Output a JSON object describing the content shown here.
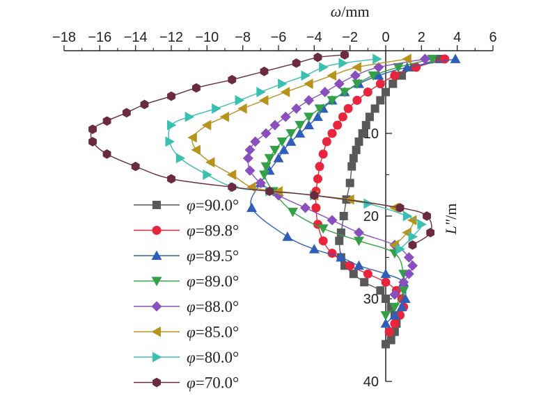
{
  "chart_data": {
    "type": "line",
    "x_axis": {
      "label_symbol": "ω",
      "label_unit": "/mm",
      "range": [
        -18,
        6
      ],
      "ticks": [
        -18,
        -16,
        -14,
        -12,
        -10,
        -8,
        -6,
        -4,
        -2,
        0,
        2,
        4,
        6
      ],
      "tick_labels": [
        "−18",
        "−16",
        "−14",
        "−12",
        "−10",
        "−8",
        "−6",
        "−4",
        "−2",
        "0",
        "2",
        "4",
        "6"
      ],
      "position": "top"
    },
    "y_axis": {
      "label_symbol": "L\"",
      "label_unit": "/m",
      "range": [
        0,
        40
      ],
      "ticks": [
        10,
        20,
        30,
        40
      ],
      "tick_labels": [
        "10",
        "20",
        "30",
        "40"
      ],
      "reversed": true,
      "crosses_at_x": 0
    },
    "grid": false,
    "legend_position": "bottom-left",
    "series": [
      {
        "name": "φ=90.0°",
        "label_value": "=90.0°",
        "color": "#595959",
        "marker": "square",
        "x": [
          3.0,
          1.6,
          0.9,
          0.4,
          0.0,
          -0.3,
          -0.6,
          -0.9,
          -1.1,
          -1.3,
          -1.5,
          -1.65,
          -1.8,
          -1.9,
          -2.0,
          -2.2,
          -2.35,
          -2.5,
          -2.6,
          -2.5,
          -2.3,
          -1.8,
          -1.2,
          -0.3,
          0.0,
          0.3,
          0.5,
          0.6,
          0.5,
          0.3,
          0.0
        ],
        "y": [
          1.0,
          2.0,
          3.0,
          4.0,
          5.0,
          6.0,
          7.0,
          8.0,
          9.0,
          10.0,
          11.0,
          12.0,
          13.0,
          14.0,
          16.0,
          18.0,
          20.0,
          22.0,
          23.0,
          25.0,
          26.0,
          27.0,
          28.0,
          29.0,
          30.0,
          31.0,
          32.0,
          33.0,
          34.0,
          35.0,
          35.5
        ]
      },
      {
        "name": "φ=89.8°",
        "label_value": "=89.8°",
        "color": "#E8253C",
        "marker": "circle",
        "x": [
          3.3,
          1.7,
          0.5,
          -0.3,
          -1.0,
          -1.6,
          -2.1,
          -2.4,
          -2.7,
          -3.0,
          -3.3,
          -3.5,
          -3.7,
          -3.8,
          -3.9,
          -3.9,
          -3.8,
          -3.5,
          -3.0,
          -2.0,
          -1.0,
          0.0,
          0.6,
          0.9,
          1.0,
          0.8,
          0.5,
          0.2
        ],
        "y": [
          1.0,
          2.0,
          3.0,
          4.0,
          5.0,
          6.0,
          7.0,
          8.0,
          9.0,
          10.0,
          11.0,
          12.5,
          14.0,
          15.5,
          17.0,
          19.0,
          21.0,
          23.0,
          24.5,
          26.0,
          27.0,
          28.0,
          29.0,
          30.0,
          31.0,
          32.0,
          33.0,
          34.0
        ]
      },
      {
        "name": "φ=89.5°",
        "label_value": "=89.5°",
        "color": "#2F5EB9",
        "marker": "triangle-up",
        "x": [
          3.9,
          1.2,
          -0.4,
          -1.5,
          -2.3,
          -3.0,
          -3.5,
          -3.8,
          -4.3,
          -4.8,
          -5.3,
          -5.7,
          -6.0,
          -6.5,
          -7.0,
          -7.5,
          -5.5,
          -4.0,
          -2.5,
          -1.5,
          0.0,
          1.0,
          1.1,
          0.9,
          0.5,
          0.0
        ],
        "y": [
          1.0,
          2.0,
          3.0,
          4.0,
          5.0,
          6.0,
          7.0,
          8.0,
          9.0,
          10.0,
          11.0,
          12.0,
          13.0,
          14.5,
          16.0,
          19.0,
          22.5,
          24.0,
          25.0,
          26.0,
          27.0,
          28.0,
          30.0,
          31.0,
          32.0,
          33.0
        ]
      },
      {
        "name": "φ=89.0°",
        "label_value": "=89.0°",
        "color": "#33A048",
        "marker": "triangle-down",
        "x": [
          2.6,
          0.7,
          -0.7,
          -1.6,
          -2.3,
          -3.0,
          -3.7,
          -4.3,
          -4.8,
          -5.3,
          -5.8,
          -6.2,
          -6.5,
          -6.7,
          -6.8,
          -6.3,
          -5.2,
          -3.5,
          -1.5,
          0.5,
          1.0,
          1.0,
          0.5,
          0.0
        ],
        "y": [
          1.0,
          2.0,
          3.0,
          4.0,
          5.0,
          6.0,
          7.0,
          8.0,
          9.0,
          10.0,
          11.0,
          12.0,
          13.0,
          14.0,
          15.0,
          17.0,
          19.5,
          21.5,
          23.0,
          24.5,
          27.0,
          29.0,
          31.0,
          32.0
        ]
      },
      {
        "name": "φ=88.0°",
        "label_value": "=88.0°",
        "color": "#8A4FBF",
        "marker": "diamond",
        "x": [
          2.2,
          -0.4,
          -1.7,
          -2.6,
          -3.4,
          -4.3,
          -5.0,
          -5.6,
          -6.2,
          -6.7,
          -7.3,
          -7.6,
          -7.7,
          -7.6,
          -7.0,
          -6.0,
          -4.5,
          -3.0,
          -1.5,
          0.5,
          1.3,
          1.5,
          1.3,
          1.0,
          0.5
        ],
        "y": [
          1.0,
          2.0,
          3.0,
          4.0,
          5.0,
          6.0,
          7.0,
          8.0,
          9.0,
          10.0,
          11.0,
          12.0,
          13.0,
          14.5,
          16.0,
          17.5,
          19.0,
          20.5,
          22.0,
          23.5,
          25.0,
          26.0,
          27.0,
          28.0,
          29.5
        ]
      },
      {
        "name": "φ=85.0°",
        "label_value": "=85.0°",
        "color": "#B8931B",
        "marker": "triangle-left",
        "x": [
          1.2,
          -1.6,
          -3.0,
          -4.3,
          -5.6,
          -6.8,
          -8.0,
          -9.0,
          -10.0,
          -10.8,
          -10.6,
          -9.8,
          -8.6,
          -7.5,
          -6.0,
          -4.0,
          -2.0,
          0.5,
          1.5,
          1.2,
          0.5
        ],
        "y": [
          1.0,
          2.0,
          3.0,
          4.0,
          5.0,
          6.0,
          7.0,
          8.0,
          9.0,
          10.5,
          12.0,
          13.5,
          15.0,
          16.5,
          17.0,
          17.5,
          18.0,
          19.0,
          20.5,
          22.0,
          23.5
        ]
      },
      {
        "name": "φ=80.0°",
        "label_value": "=80.0°",
        "color": "#3BBFB0",
        "marker": "triangle-right",
        "x": [
          -0.5,
          -2.4,
          -3.5,
          -4.5,
          -5.8,
          -7.0,
          -8.2,
          -9.5,
          -11.0,
          -12.0,
          -12.1,
          -11.5,
          -10.0,
          -8.5,
          -6.5,
          -4.0,
          -1.0,
          1.2,
          2.0,
          1.5,
          0.8
        ],
        "y": [
          1.0,
          1.5,
          2.0,
          3.0,
          4.0,
          5.0,
          6.0,
          7.0,
          8.0,
          9.0,
          11.0,
          13.0,
          15.0,
          16.5,
          17.0,
          17.5,
          18.5,
          20.0,
          21.0,
          22.5,
          24.0
        ]
      },
      {
        "name": "φ=70.0°",
        "label_value": "=70.0°",
        "color": "#6A2A3F",
        "marker": "hexagon",
        "x": [
          -2.3,
          -3.8,
          -5.0,
          -6.8,
          -8.6,
          -10.6,
          -12.0,
          -13.5,
          -14.5,
          -15.6,
          -16.4,
          -16.4,
          -15.6,
          -14.0,
          -12.0,
          -8.6,
          -6.5,
          -4.0,
          0.8,
          2.3,
          2.5,
          1.5
        ],
        "y": [
          0.5,
          0.8,
          1.5,
          2.5,
          3.5,
          4.5,
          5.5,
          6.5,
          7.5,
          8.5,
          9.5,
          11.0,
          12.5,
          14.0,
          15.5,
          16.5,
          17.0,
          17.5,
          19.0,
          20.0,
          22.0,
          23.5
        ]
      }
    ]
  }
}
